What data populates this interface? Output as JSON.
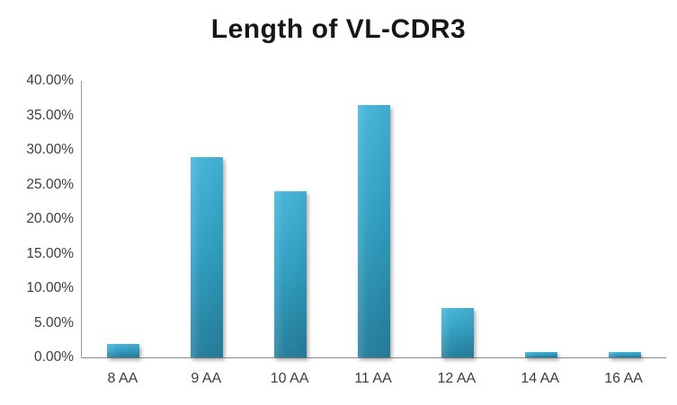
{
  "title": "Length of VL-CDR3",
  "chart_data": {
    "type": "bar",
    "title": "Length of VL-CDR3",
    "categories": [
      "8 AA",
      "9 AA",
      "10 AA",
      "11 AA",
      "12 AA",
      "14 AA",
      "16 AA"
    ],
    "values": [
      2.0,
      29.0,
      24.0,
      36.5,
      7.2,
      0.8,
      0.8
    ],
    "xlabel": "",
    "ylabel": "",
    "ylim": [
      0,
      40
    ],
    "ytick_step": 5,
    "ytick_labels": [
      "0.00%",
      "5.00%",
      "10.00%",
      "15.00%",
      "20.00%",
      "25.00%",
      "30.00%",
      "35.00%",
      "40.00%"
    ],
    "grid": false,
    "legend": null,
    "bar_color_top": "#47b5d9",
    "bar_color_bottom": "#27809e",
    "axis_line_color": "#8c8c8c",
    "text_color": "#3d3d3d",
    "title_color": "#161616",
    "background_color": "#ffffff"
  }
}
